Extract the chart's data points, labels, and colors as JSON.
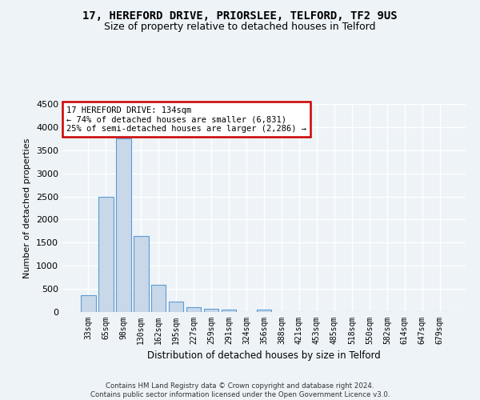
{
  "title_line1": "17, HEREFORD DRIVE, PRIORSLEE, TELFORD, TF2 9US",
  "title_line2": "Size of property relative to detached houses in Telford",
  "xlabel": "Distribution of detached houses by size in Telford",
  "ylabel": "Number of detached properties",
  "footnote": "Contains HM Land Registry data © Crown copyright and database right 2024.\nContains public sector information licensed under the Open Government Licence v3.0.",
  "categories": [
    "33sqm",
    "65sqm",
    "98sqm",
    "130sqm",
    "162sqm",
    "195sqm",
    "227sqm",
    "259sqm",
    "291sqm",
    "324sqm",
    "356sqm",
    "388sqm",
    "421sqm",
    "453sqm",
    "485sqm",
    "518sqm",
    "550sqm",
    "582sqm",
    "614sqm",
    "647sqm",
    "679sqm"
  ],
  "values": [
    370,
    2500,
    3750,
    1640,
    590,
    230,
    110,
    65,
    50,
    0,
    60,
    0,
    0,
    0,
    0,
    0,
    0,
    0,
    0,
    0,
    0
  ],
  "bar_color": "#c8d8e8",
  "bar_edge_color": "#5b9bd5",
  "annotation_text": "17 HEREFORD DRIVE: 134sqm\n← 74% of detached houses are smaller (6,831)\n25% of semi-detached houses are larger (2,286) →",
  "annotation_box_color": "#ffffff",
  "annotation_box_edge": "#cc0000",
  "ylim": [
    0,
    4500
  ],
  "yticks": [
    0,
    500,
    1000,
    1500,
    2000,
    2500,
    3000,
    3500,
    4000,
    4500
  ],
  "bg_color": "#eef3f8",
  "plot_bg_color": "#eef3f8",
  "grid_color": "#ffffff",
  "title_fontsize": 10,
  "subtitle_fontsize": 9
}
